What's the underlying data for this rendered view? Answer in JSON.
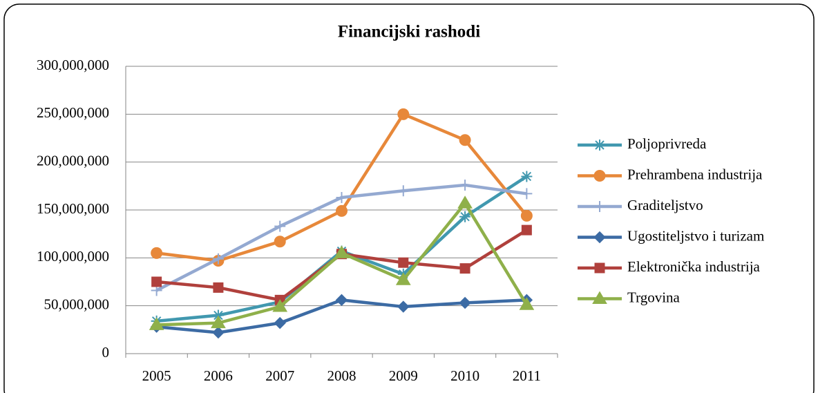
{
  "chart_data": {
    "type": "line",
    "title": "Financijski rashodi",
    "categories": [
      "2005",
      "2006",
      "2007",
      "2008",
      "2009",
      "2010",
      "2011"
    ],
    "ylim": [
      0,
      300000000
    ],
    "yticks": [
      0,
      {
        "value": 50000000,
        "label": "50,000,000"
      },
      {
        "value": 100000000,
        "label": "100,000,000"
      },
      {
        "value": 150000000,
        "label": "150,000,000"
      },
      {
        "value": 200000000,
        "label": "200,000,000"
      },
      {
        "value": 250000000,
        "label": "250,000,000"
      },
      {
        "value": 300000000,
        "label": "300,000,000"
      }
    ],
    "grid": true,
    "legend": "right",
    "series": [
      {
        "name": "Poljoprivreda",
        "color": "#4198af",
        "marker": "asterisk",
        "values": [
          34000000,
          40000000,
          54000000,
          107000000,
          83000000,
          143000000,
          185000000
        ]
      },
      {
        "name": "Prehrambena industrija",
        "color": "#e7883a",
        "marker": "circle",
        "values": [
          105000000,
          97000000,
          117000000,
          149000000,
          250000000,
          223000000,
          144000000
        ]
      },
      {
        "name": "Graditeljstvo",
        "color": "#94a9d1",
        "marker": "plus",
        "values": [
          66000000,
          99000000,
          133000000,
          163000000,
          170000000,
          176000000,
          167000000
        ]
      },
      {
        "name": "Ugostiteljstvo i turizam",
        "color": "#3c6ba4",
        "marker": "diamond",
        "values": [
          28000000,
          22000000,
          32000000,
          56000000,
          49000000,
          53000000,
          56000000
        ]
      },
      {
        "name": "Elektronička industrija",
        "color": "#b0403c",
        "marker": "square",
        "values": [
          75000000,
          69000000,
          56000000,
          104000000,
          95000000,
          89000000,
          129000000
        ]
      },
      {
        "name": "Trgovina",
        "color": "#8fb04a",
        "marker": "triangle",
        "values": [
          30000000,
          32000000,
          49000000,
          105000000,
          77000000,
          157000000,
          51000000
        ]
      }
    ]
  }
}
